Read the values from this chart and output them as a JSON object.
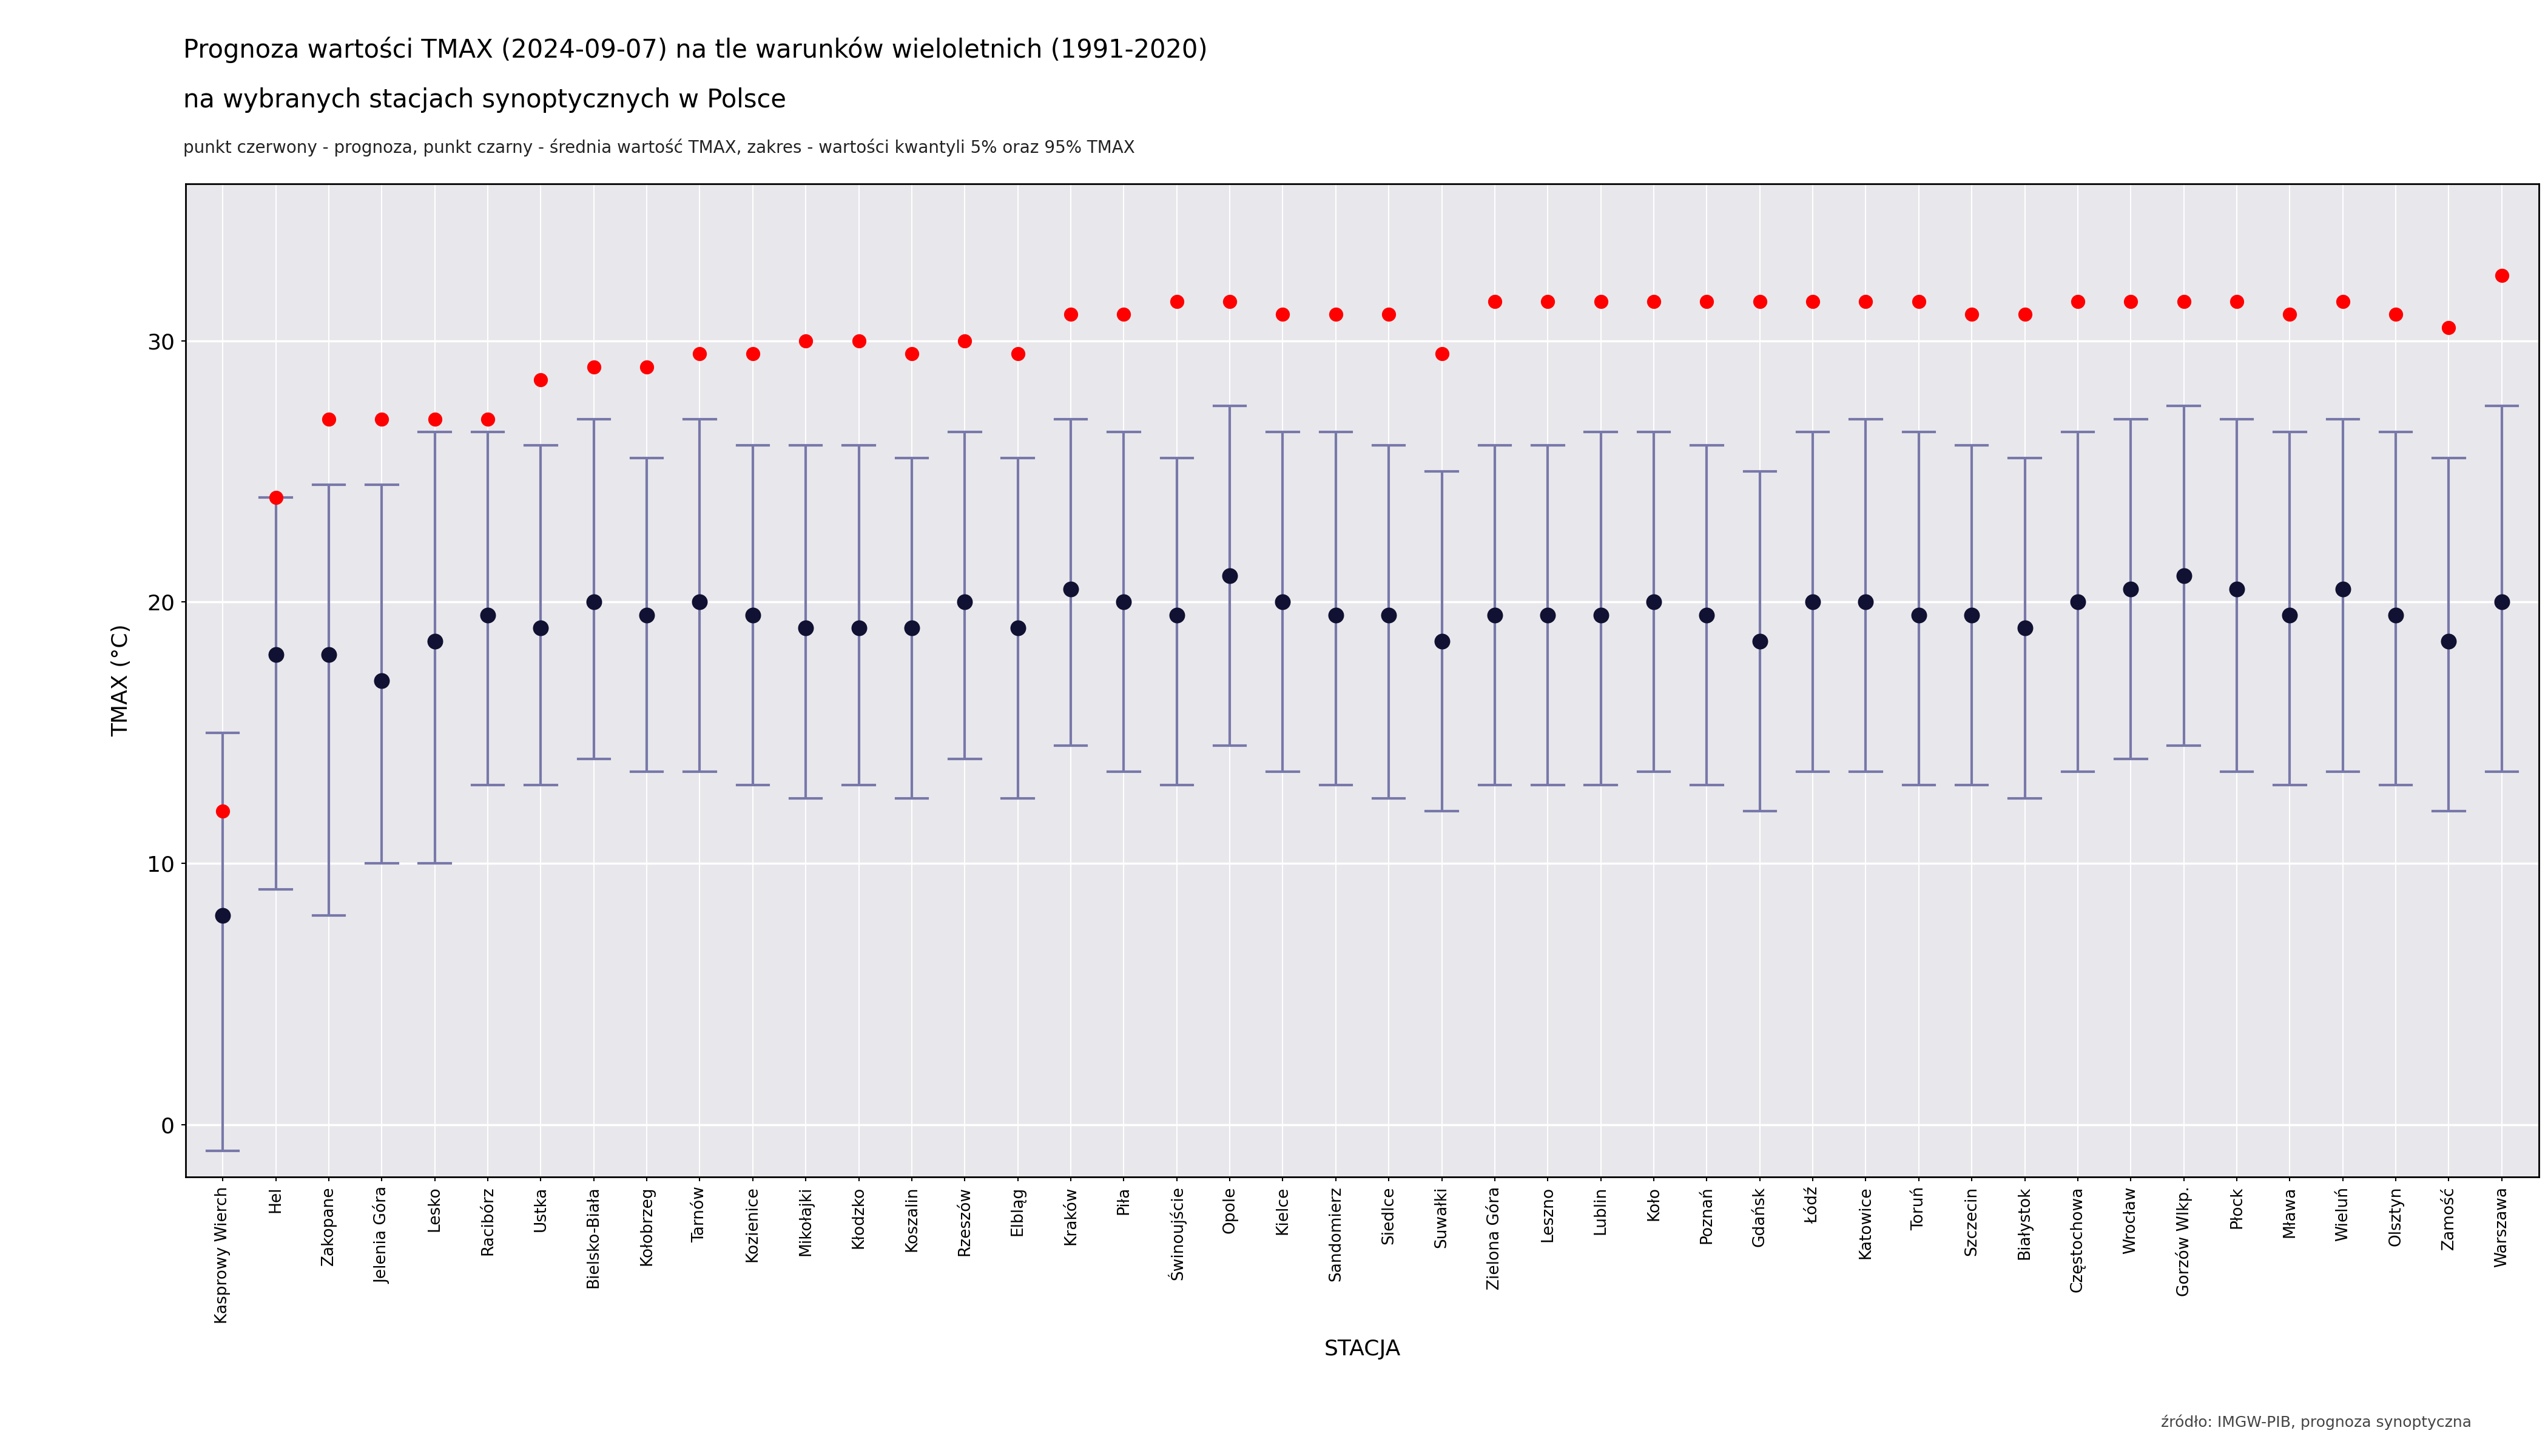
{
  "title_line1": "Prognoza wartości TMAX (2024-09-07) na tle warunków wieloletnich (1991-2020)",
  "title_line2": "na wybranych stacjach synoptycznych w Polsce",
  "subtitle": "punkt czerwony - prognoza, punkt czarny - średnia wartość TMAX, zakres - wartości kwantyli 5% oraz 95% TMAX",
  "xlabel": "STACJA",
  "ylabel": "TMAX (°C)",
  "source": "źródło: IMGW-PIB, prognoza synoptyczna",
  "stations": [
    "Kasprowy Wierch",
    "Hel",
    "Zakopane",
    "Jelenia Góra",
    "Lesko",
    "Racibórz",
    "Ustka",
    "Bielsko-Biała",
    "Kołobrzeg",
    "Tarnów",
    "Kozienice",
    "Mikołajki",
    "Kłodzko",
    "Koszalin",
    "Rzeszów",
    "Elbląg",
    "Kraków",
    "Piła",
    "Świnoujście",
    "Opole",
    "Kielce",
    "Sandomierz",
    "Siedlce",
    "Suwałki",
    "Zielona Góra",
    "Leszno",
    "Lublin",
    "Koło",
    "Poznań",
    "Gdańsk",
    "Łódź",
    "Katowice",
    "Toruń",
    "Szczecin",
    "Białystok",
    "Częstochowa",
    "Wrocław",
    "Gorzów Wlkp.",
    "Płock",
    "Mława",
    "Wieluń",
    "Olsztyn",
    "Zamość",
    "Warszawa"
  ],
  "forecast": [
    12.0,
    24.0,
    27.0,
    27.0,
    27.0,
    27.0,
    28.5,
    29.0,
    29.0,
    29.5,
    29.5,
    30.0,
    30.0,
    29.5,
    30.0,
    29.5,
    31.0,
    31.0,
    31.5,
    31.5,
    31.0,
    31.0,
    31.0,
    29.5,
    31.5,
    31.5,
    31.5,
    31.5,
    31.5,
    31.5,
    31.5,
    31.5,
    31.5,
    31.0,
    31.0,
    31.5,
    31.5,
    31.5,
    31.5,
    31.0,
    31.5,
    31.0,
    30.5,
    32.5
  ],
  "mean": [
    8.0,
    18.0,
    18.0,
    17.0,
    18.5,
    19.5,
    19.0,
    20.0,
    19.5,
    20.0,
    19.5,
    19.0,
    19.0,
    19.0,
    20.0,
    19.0,
    20.5,
    20.0,
    19.5,
    21.0,
    20.0,
    19.5,
    19.5,
    18.5,
    19.5,
    19.5,
    19.5,
    20.0,
    19.5,
    18.5,
    20.0,
    20.0,
    19.5,
    19.5,
    19.0,
    20.0,
    20.5,
    21.0,
    20.5,
    19.5,
    20.5,
    19.5,
    18.5,
    20.0
  ],
  "q05": [
    -1.0,
    9.0,
    8.0,
    10.0,
    10.0,
    13.0,
    13.0,
    14.0,
    13.5,
    13.5,
    13.0,
    12.5,
    13.0,
    12.5,
    14.0,
    12.5,
    14.5,
    13.5,
    13.0,
    14.5,
    13.5,
    13.0,
    12.5,
    12.0,
    13.0,
    13.0,
    13.0,
    13.5,
    13.0,
    12.0,
    13.5,
    13.5,
    13.0,
    13.0,
    12.5,
    13.5,
    14.0,
    14.5,
    13.5,
    13.0,
    13.5,
    13.0,
    12.0,
    13.5
  ],
  "q95": [
    15.0,
    24.0,
    24.5,
    24.5,
    26.5,
    26.5,
    26.0,
    27.0,
    25.5,
    27.0,
    26.0,
    26.0,
    26.0,
    25.5,
    26.5,
    25.5,
    27.0,
    26.5,
    25.5,
    27.5,
    26.5,
    26.5,
    26.0,
    25.0,
    26.0,
    26.0,
    26.5,
    26.5,
    26.0,
    25.0,
    26.5,
    27.0,
    26.5,
    26.0,
    25.5,
    26.5,
    27.0,
    27.5,
    27.0,
    26.5,
    27.0,
    26.5,
    25.5,
    27.5
  ],
  "bg_color": "#e8e8ec",
  "grid_color": "#ffffff",
  "errorbar_color": "#7878aa",
  "forecast_color": "#ff0000",
  "mean_color": "#111133",
  "ylim_min": -2,
  "ylim_max": 36,
  "yticks": [
    0,
    10,
    20,
    30
  ]
}
